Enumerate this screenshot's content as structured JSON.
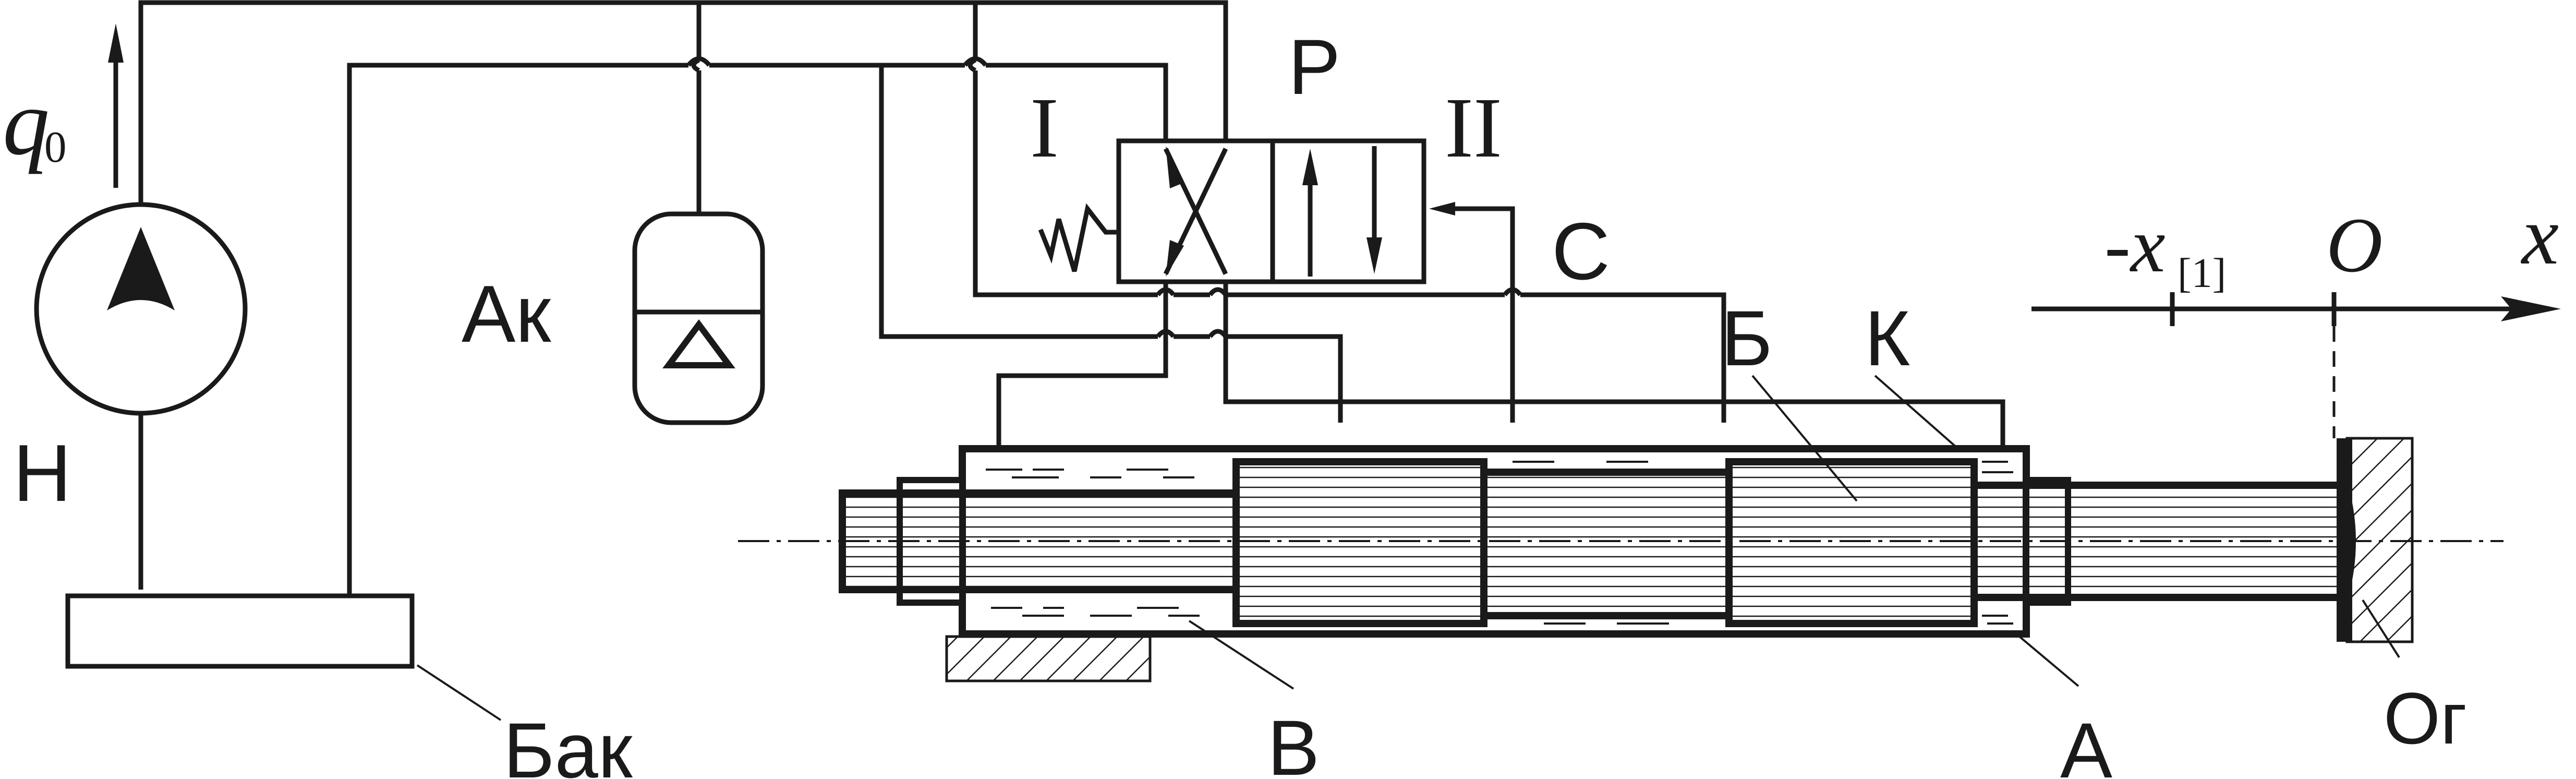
{
  "labels": {
    "flow": "q",
    "flow_sub": "0",
    "pump": "Н",
    "accumulator": "Ак",
    "tank": "Бак",
    "valve_position_1": "I",
    "valve_port": "P",
    "valve_position_2": "II",
    "control": "С",
    "piston": "Б",
    "cylinder": "К",
    "chamber_b": "В",
    "chamber_a": "А",
    "axis_x": "x",
    "axis_origin": "O",
    "axis_neg": "-x",
    "axis_neg_sub": "[1]",
    "stop": "Ог"
  }
}
